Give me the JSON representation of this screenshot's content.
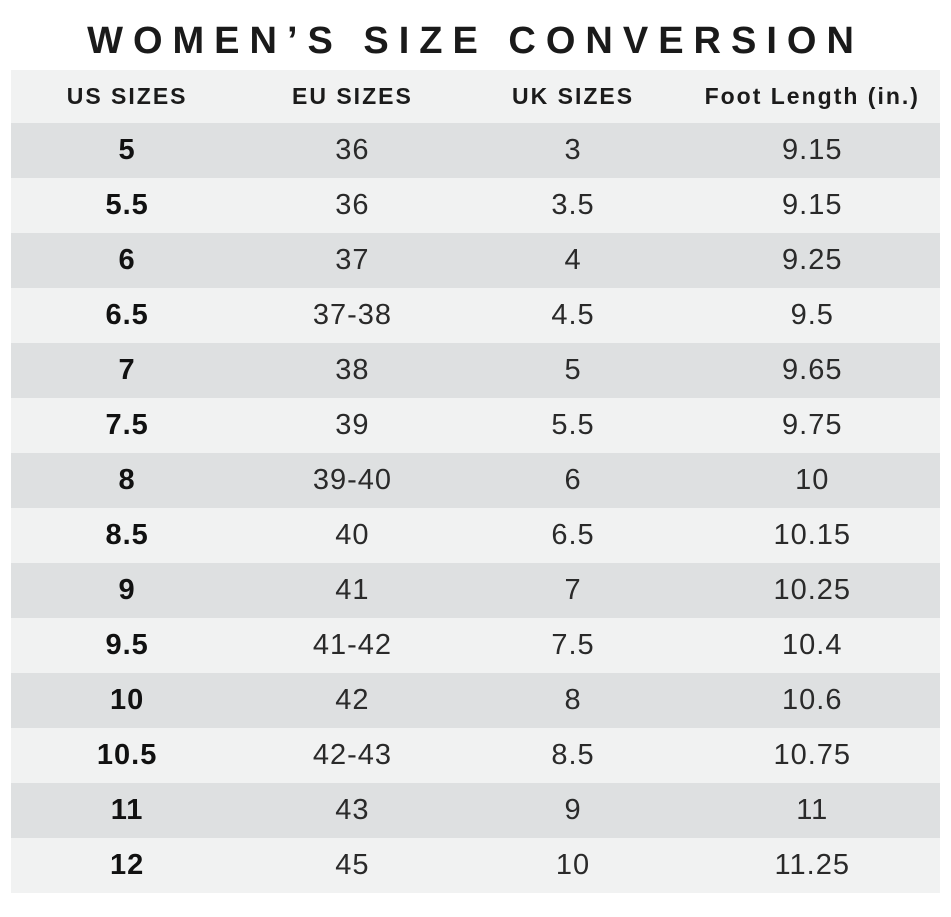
{
  "title": "WOMEN’S SIZE CONVERSION",
  "chart_data": {
    "type": "table",
    "title": "WOMEN’S SIZE CONVERSION",
    "columns": [
      "US SIZES",
      "EU SIZES",
      "UK SIZES",
      "Foot Length (in.)"
    ],
    "rows": [
      [
        "5",
        "36",
        "3",
        "9.15"
      ],
      [
        "5.5",
        "36",
        "3.5",
        "9.15"
      ],
      [
        "6",
        "37",
        "4",
        "9.25"
      ],
      [
        "6.5",
        "37-38",
        "4.5",
        "9.5"
      ],
      [
        "7",
        "38",
        "5",
        "9.65"
      ],
      [
        "7.5",
        "39",
        "5.5",
        "9.75"
      ],
      [
        "8",
        "39-40",
        "6",
        "10"
      ],
      [
        "8.5",
        "40",
        "6.5",
        "10.15"
      ],
      [
        "9",
        "41",
        "7",
        "10.25"
      ],
      [
        "9.5",
        "41-42",
        "7.5",
        "10.4"
      ],
      [
        "10",
        "42",
        "8",
        "10.6"
      ],
      [
        "10.5",
        "42-43",
        "8.5",
        "10.75"
      ],
      [
        "11",
        "43",
        "9",
        "11"
      ],
      [
        "12",
        "45",
        "10",
        "11.25"
      ]
    ],
    "layout": {
      "row_stripe_dark": "#dee0e1",
      "row_stripe_light": "#f1f2f2",
      "header_background": "#f1f2f2",
      "text_color": "#1b1b1b",
      "page_background": "#ffffff"
    }
  }
}
